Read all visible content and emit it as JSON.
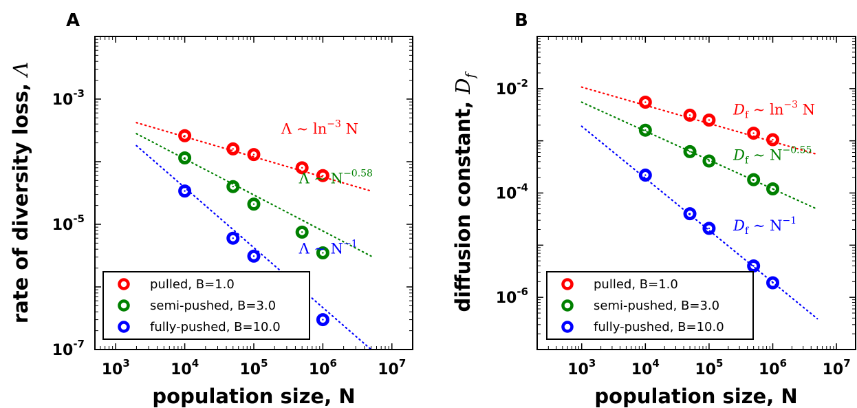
{
  "charts": [
    {
      "letter": "A",
      "xlabel": "population size, N",
      "ylabel": "rate of diversity loss, ",
      "ylabel_sym": "Λ",
      "ylabel_sub": "",
      "xtick_exps": [
        "3",
        "4",
        "5",
        "6",
        "7"
      ],
      "ytick_exps": [
        "-3",
        "-5",
        "-7"
      ],
      "annotations": [
        {
          "text": "Λ ∼ ln",
          "sup": "−3",
          "tail": " N",
          "color": "#ff0000",
          "x": 250000.0,
          "y": 0.00028
        },
        {
          "text": "Λ ∼ N",
          "sup": "−0.58",
          "tail": "",
          "color": "#008000",
          "x": 450000.0,
          "y": 4.5e-05
        },
        {
          "text": "Λ ∼ N",
          "sup": "−1",
          "tail": "",
          "color": "#0000ff",
          "x": 450000.0,
          "y": 3.4e-06
        }
      ],
      "legend": [
        "pulled, B=1.0",
        "semi-pushed, B=3.0",
        "fully-pushed, B=10.0"
      ]
    },
    {
      "letter": "B",
      "xlabel": "population size, N",
      "ylabel": "diffusion constant, ",
      "ylabel_sym": "D",
      "ylabel_sub": "f",
      "xtick_exps": [
        "3",
        "4",
        "5",
        "6",
        "7"
      ],
      "ytick_exps": [
        "-2",
        "-4",
        "-6"
      ],
      "annotations": [
        {
          "text": "D",
          "sub": "f",
          "mid": " ∼ ln",
          "sup": "−3",
          "tail": " N",
          "color": "#ff0000",
          "x": 240000.0,
          "y": 0.0032
        },
        {
          "text": "D",
          "sub": "f",
          "mid": " ∼ N",
          "sup": "−0.55",
          "tail": "",
          "color": "#008000",
          "x": 240000.0,
          "y": 0.00043
        },
        {
          "text": "D",
          "sub": "f",
          "mid": " ∼ N",
          "sup": "−1",
          "tail": "",
          "color": "#0000ff",
          "x": 240000.0,
          "y": 1.9e-05
        }
      ],
      "legend": [
        "pulled, B=1.0",
        "semi-pushed, B=3.0",
        "fully-pushed, B=10.0"
      ]
    }
  ],
  "colors": {
    "pulled": "#ff0000",
    "semi": "#008000",
    "fully": "#0000ff"
  },
  "chart_data": [
    {
      "type": "scatter",
      "xlabel": "population size, N",
      "ylabel": "rate of diversity loss, Λ",
      "xscale": "log",
      "yscale": "log",
      "xlim": [
        500,
        20000000
      ],
      "ylim": [
        1e-07,
        0.01
      ],
      "legend_position": "lower-left",
      "series": [
        {
          "name": "pulled, B=1.0",
          "color": "#ff0000",
          "x": [
            10000,
            50000,
            100000,
            500000,
            1000000
          ],
          "y": [
            0.00026,
            0.00016,
            0.00013,
            8e-05,
            6e-05
          ],
          "fit": {
            "x": [
              2000,
              5000000
            ],
            "y": [
              0.00042,
              3.4e-05
            ]
          }
        },
        {
          "name": "semi-pushed, B=3.0",
          "color": "#008000",
          "x": [
            10000,
            50000,
            100000,
            500000,
            1000000
          ],
          "y": [
            0.000115,
            4e-05,
            2.1e-05,
            7.5e-06,
            3.5e-06
          ],
          "fit": {
            "x": [
              2000,
              5000000
            ],
            "y": [
              0.00028,
              3.1e-06
            ]
          }
        },
        {
          "name": "fully-pushed, B=10.0",
          "color": "#0000ff",
          "x": [
            10000,
            50000,
            100000,
            1000000
          ],
          "y": [
            3.4e-05,
            6e-06,
            3.1e-06,
            3e-07
          ],
          "fit": {
            "x": [
              2000,
              5000000
            ],
            "y": [
              0.00018,
              1e-07
            ]
          }
        }
      ]
    },
    {
      "type": "scatter",
      "xlabel": "population size, N",
      "ylabel": "diffusion constant, Df",
      "xscale": "log",
      "yscale": "log",
      "xlim": [
        200,
        20000000
      ],
      "ylim": [
        1e-07,
        0.1
      ],
      "legend_position": "lower-left",
      "series": [
        {
          "name": "pulled, B=1.0",
          "color": "#ff0000",
          "x": [
            10000,
            50000,
            100000,
            500000,
            1000000
          ],
          "y": [
            0.0055,
            0.0031,
            0.0025,
            0.0014,
            0.00105
          ],
          "fit": {
            "x": [
              1000,
              5000000
            ],
            "y": [
              0.0107,
              0.00055
            ]
          }
        },
        {
          "name": "semi-pushed, B=3.0",
          "color": "#008000",
          "x": [
            10000,
            50000,
            100000,
            500000,
            1000000
          ],
          "y": [
            0.0016,
            0.00062,
            0.00041,
            0.00018,
            0.00012
          ],
          "fit": {
            "x": [
              1000,
              5000000
            ],
            "y": [
              0.0055,
              4.9e-05
            ]
          }
        },
        {
          "name": "fully-pushed, B=10.0",
          "color": "#0000ff",
          "x": [
            10000,
            50000,
            100000,
            500000,
            1000000
          ],
          "y": [
            0.00022,
            4e-05,
            2.1e-05,
            4e-06,
            1.9e-06
          ],
          "fit": {
            "x": [
              1000,
              5000000
            ],
            "y": [
              0.0019,
              3.9e-07
            ]
          }
        }
      ]
    }
  ]
}
